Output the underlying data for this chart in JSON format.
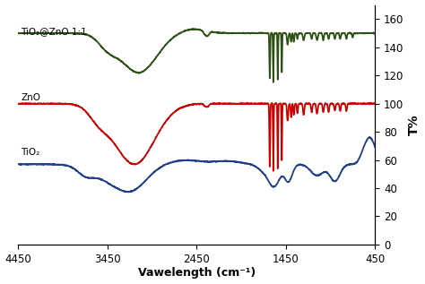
{
  "xlabel": "Vawelength (cm⁻¹)",
  "ylabel_right": "T%",
  "ylim": [
    0,
    170
  ],
  "yticks": [
    0,
    20,
    40,
    60,
    80,
    100,
    120,
    140,
    160
  ],
  "xticks": [
    4450,
    3450,
    2450,
    1450,
    450
  ],
  "colors": {
    "TiO2atZnO": "#2d5016",
    "ZnO": "#cc0000",
    "TiO2": "#1f3f8a"
  },
  "labels": {
    "TiO2atZnO": "TiO₂@ZnO 1:1",
    "ZnO": "ZnO",
    "TiO2": "TiO₂"
  },
  "label_positions": {
    "TiO2atZnO": [
      4420,
      148
    ],
    "ZnO": [
      4420,
      101
    ],
    "TiO2": [
      4420,
      62
    ]
  }
}
